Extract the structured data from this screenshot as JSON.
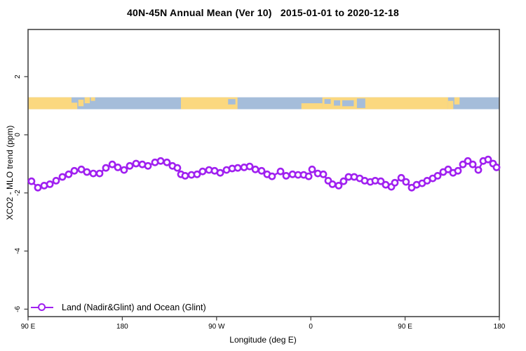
{
  "chart_data": {
    "type": "line",
    "title": "40N-45N Annual Mean (Ver 10)   2015-01-01 to 2020-12-18",
    "xlabel": "Longitude (deg E)",
    "ylabel": "XCO2 - MLO trend (ppm)",
    "xlim": [
      90,
      540
    ],
    "ylim": [
      -6.3,
      3.6
    ],
    "grid": false,
    "x_ticks": [
      {
        "lon": 90,
        "label": "90 E"
      },
      {
        "lon": 180,
        "label": "180"
      },
      {
        "lon": 270,
        "label": "90 W"
      },
      {
        "lon": 360,
        "label": "0"
      },
      {
        "lon": 450,
        "label": "90 E"
      },
      {
        "lon": 540,
        "label": "180"
      }
    ],
    "y_ticks": [
      {
        "v": 2,
        "label": "2"
      },
      {
        "v": 0,
        "label": "0"
      },
      {
        "v": -2,
        "label": "-2"
      },
      {
        "v": -4,
        "label": "-4"
      },
      {
        "v": -6,
        "label": "-6"
      }
    ],
    "legend": {
      "label": "Land (Nadir&Glint) and Ocean (Glint)",
      "position": "bottom-left"
    },
    "series": [
      {
        "name": "Land (Nadir&Glint) and Ocean (Glint)",
        "color": "#a020f0",
        "marker": "open-circle",
        "points": [
          [
            93.3,
            -1.6
          ],
          [
            99.4,
            -1.82
          ],
          [
            105.4,
            -1.75
          ],
          [
            110.8,
            -1.7
          ],
          [
            116.8,
            -1.58
          ],
          [
            122.8,
            -1.45
          ],
          [
            128.8,
            -1.36
          ],
          [
            134.2,
            -1.24
          ],
          [
            140.9,
            -1.19
          ],
          [
            146.2,
            -1.28
          ],
          [
            152.3,
            -1.33
          ],
          [
            158.3,
            -1.33
          ],
          [
            164.3,
            -1.14
          ],
          [
            170.4,
            -1.02
          ],
          [
            175.7,
            -1.12
          ],
          [
            181.7,
            -1.21
          ],
          [
            187.1,
            -1.07
          ],
          [
            193.1,
            -0.99
          ],
          [
            199.1,
            -1.02
          ],
          [
            204.5,
            -1.07
          ],
          [
            211.2,
            -0.95
          ],
          [
            216.6,
            -0.9
          ],
          [
            222.6,
            -0.95
          ],
          [
            227.9,
            -1.07
          ],
          [
            232.6,
            -1.14
          ],
          [
            236.0,
            -1.36
          ],
          [
            240.0,
            -1.41
          ],
          [
            246.0,
            -1.38
          ],
          [
            251.4,
            -1.36
          ],
          [
            256.7,
            -1.26
          ],
          [
            262.8,
            -1.21
          ],
          [
            268.1,
            -1.24
          ],
          [
            273.5,
            -1.31
          ],
          [
            279.5,
            -1.21
          ],
          [
            284.9,
            -1.16
          ],
          [
            290.2,
            -1.14
          ],
          [
            296.3,
            -1.12
          ],
          [
            301.6,
            -1.09
          ],
          [
            307.0,
            -1.19
          ],
          [
            313.0,
            -1.24
          ],
          [
            318.3,
            -1.36
          ],
          [
            323.0,
            -1.43
          ],
          [
            331.1,
            -1.26
          ],
          [
            336.4,
            -1.41
          ],
          [
            342.5,
            -1.36
          ],
          [
            347.8,
            -1.38
          ],
          [
            353.2,
            -1.38
          ],
          [
            357.9,
            -1.43
          ],
          [
            361.2,
            -1.19
          ],
          [
            366.6,
            -1.33
          ],
          [
            371.9,
            -1.36
          ],
          [
            376.6,
            -1.58
          ],
          [
            380.6,
            -1.7
          ],
          [
            386.6,
            -1.75
          ],
          [
            391.3,
            -1.6
          ],
          [
            396.0,
            -1.45
          ],
          [
            401.4,
            -1.45
          ],
          [
            406.7,
            -1.5
          ],
          [
            411.4,
            -1.58
          ],
          [
            416.8,
            -1.62
          ],
          [
            421.5,
            -1.58
          ],
          [
            426.8,
            -1.6
          ],
          [
            431.5,
            -1.72
          ],
          [
            436.9,
            -1.79
          ],
          [
            440.2,
            -1.65
          ],
          [
            446.3,
            -1.48
          ],
          [
            450.9,
            -1.62
          ],
          [
            456.3,
            -1.82
          ],
          [
            461.0,
            -1.72
          ],
          [
            466.3,
            -1.67
          ],
          [
            471.0,
            -1.58
          ],
          [
            476.4,
            -1.5
          ],
          [
            481.1,
            -1.41
          ],
          [
            486.4,
            -1.28
          ],
          [
            491.1,
            -1.19
          ],
          [
            495.8,
            -1.31
          ],
          [
            500.5,
            -1.24
          ],
          [
            505.2,
            -1.02
          ],
          [
            509.9,
            -0.9
          ],
          [
            514.6,
            -1.02
          ],
          [
            519.9,
            -1.21
          ],
          [
            524.6,
            -0.9
          ],
          [
            529.3,
            -0.85
          ],
          [
            534.0,
            -0.99
          ],
          [
            537.3,
            -1.12
          ]
        ]
      }
    ],
    "map_strip": {
      "description": "land-ocean world map band for latitude 40N-45N drawn across the plot near y=+1",
      "value_band": [
        0.88,
        1.29
      ],
      "land_color": "#fbd87f",
      "ocean_color": "#a5bdda",
      "ocean_base": [
        90,
        540
      ],
      "land_patches": [
        {
          "s": 90,
          "e": 131.5,
          "t": 0,
          "b": 1
        },
        {
          "s": 131.5,
          "e": 137,
          "t": 0.45,
          "b": 1
        },
        {
          "s": 138,
          "e": 143,
          "t": 0.2,
          "b": 0.75
        },
        {
          "s": 144,
          "e": 149,
          "t": 0,
          "b": 0.5
        },
        {
          "s": 150,
          "e": 154,
          "t": 0,
          "b": 0.3
        },
        {
          "s": 236,
          "e": 290,
          "t": 0,
          "b": 1
        },
        {
          "s": 351,
          "e": 371,
          "t": 0.5,
          "b": 1
        },
        {
          "s": 371,
          "e": 491,
          "t": 0,
          "b": 1
        },
        {
          "s": 491,
          "e": 496,
          "t": 0.3,
          "b": 1
        },
        {
          "s": 497,
          "e": 502,
          "t": 0,
          "b": 0.6
        }
      ],
      "ocean_patches": [
        {
          "s": 281,
          "e": 288,
          "t": 0.15,
          "b": 0.6
        },
        {
          "s": 373,
          "e": 379,
          "t": 0.15,
          "b": 0.55
        },
        {
          "s": 382,
          "e": 388,
          "t": 0.25,
          "b": 0.7
        },
        {
          "s": 390,
          "e": 401,
          "t": 0.25,
          "b": 0.75
        },
        {
          "s": 404,
          "e": 412,
          "t": 0.1,
          "b": 0.9
        }
      ]
    }
  },
  "colors": {
    "axis": "#454545",
    "background": "#ffffff",
    "text": "#000000",
    "series": "#a020f0",
    "land": "#fbd87f",
    "ocean": "#a5bdda"
  }
}
